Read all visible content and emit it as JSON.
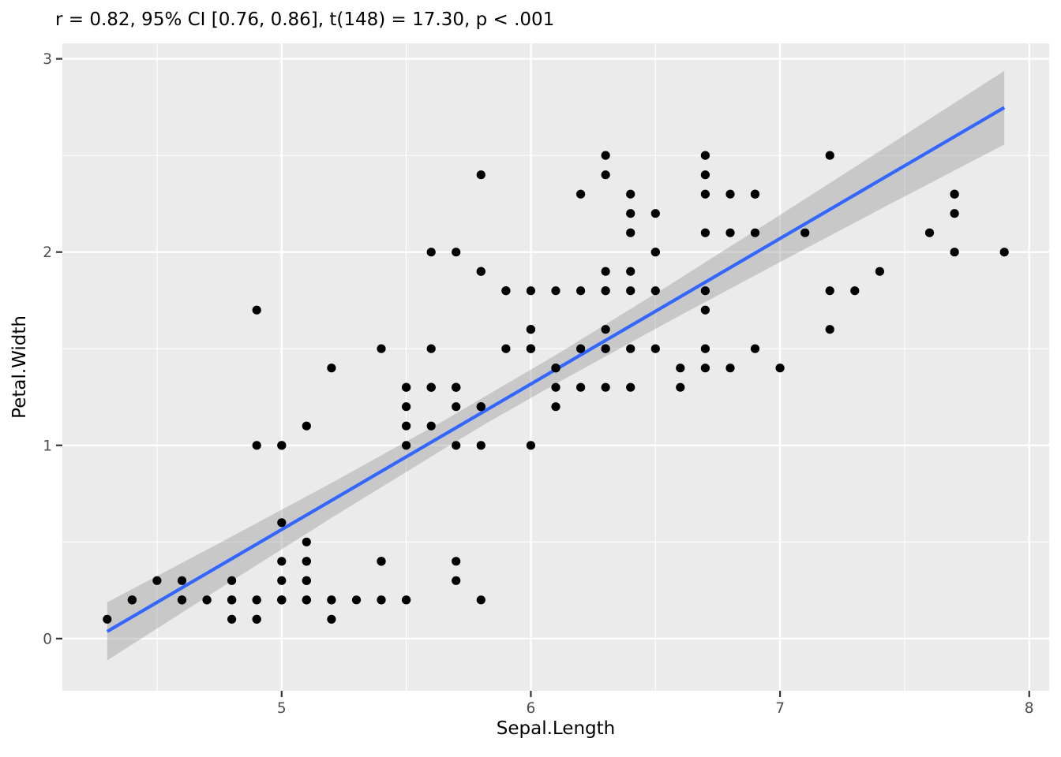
{
  "chart_data": {
    "type": "scatter",
    "title": "r = 0.82, 95% CI [0.76, 0.86], t(148) = 17.30, p < .001",
    "xlabel": "Sepal.Length",
    "ylabel": "Petal.Width",
    "stats": {
      "r": 0.82,
      "ci_level": "95%",
      "ci_lower": 0.76,
      "ci_upper": 0.86,
      "df": 148,
      "t": 17.3,
      "p": "< .001"
    },
    "xlim": [
      4.12,
      8.08
    ],
    "ylim": [
      -0.27,
      3.08
    ],
    "x_ticks": [
      5,
      6,
      7,
      8
    ],
    "y_ticks": [
      0,
      1,
      2,
      3
    ],
    "x_minor": [
      4.5,
      5.5,
      6.5,
      7.5
    ],
    "y_minor": [
      0.5,
      1.5,
      2.5
    ],
    "grid": true,
    "legend_position": "none",
    "points": [
      [
        5.1,
        0.2
      ],
      [
        4.9,
        0.2
      ],
      [
        4.7,
        0.2
      ],
      [
        4.6,
        0.2
      ],
      [
        5.0,
        0.2
      ],
      [
        5.4,
        0.4
      ],
      [
        4.6,
        0.3
      ],
      [
        5.0,
        0.2
      ],
      [
        4.4,
        0.2
      ],
      [
        4.9,
        0.1
      ],
      [
        5.4,
        0.2
      ],
      [
        4.8,
        0.2
      ],
      [
        4.8,
        0.1
      ],
      [
        4.3,
        0.1
      ],
      [
        5.8,
        0.2
      ],
      [
        5.7,
        0.4
      ],
      [
        5.4,
        0.4
      ],
      [
        5.1,
        0.3
      ],
      [
        5.7,
        0.3
      ],
      [
        5.1,
        0.3
      ],
      [
        5.4,
        0.2
      ],
      [
        5.1,
        0.4
      ],
      [
        4.6,
        0.2
      ],
      [
        5.1,
        0.5
      ],
      [
        4.8,
        0.2
      ],
      [
        5.0,
        0.2
      ],
      [
        5.0,
        0.4
      ],
      [
        5.2,
        0.2
      ],
      [
        5.2,
        0.2
      ],
      [
        4.7,
        0.2
      ],
      [
        4.8,
        0.2
      ],
      [
        5.4,
        0.4
      ],
      [
        5.2,
        0.1
      ],
      [
        5.5,
        0.2
      ],
      [
        4.9,
        0.2
      ],
      [
        5.0,
        0.2
      ],
      [
        5.5,
        0.2
      ],
      [
        4.9,
        0.1
      ],
      [
        4.4,
        0.2
      ],
      [
        5.1,
        0.2
      ],
      [
        5.0,
        0.3
      ],
      [
        4.5,
        0.3
      ],
      [
        4.4,
        0.2
      ],
      [
        5.0,
        0.6
      ],
      [
        5.1,
        0.4
      ],
      [
        4.8,
        0.3
      ],
      [
        5.1,
        0.2
      ],
      [
        4.6,
        0.2
      ],
      [
        5.3,
        0.2
      ],
      [
        5.0,
        0.2
      ],
      [
        7.0,
        1.4
      ],
      [
        6.4,
        1.5
      ],
      [
        6.9,
        1.5
      ],
      [
        5.5,
        1.3
      ],
      [
        6.5,
        1.5
      ],
      [
        5.7,
        1.3
      ],
      [
        6.3,
        1.6
      ],
      [
        4.9,
        1.0
      ],
      [
        6.6,
        1.3
      ],
      [
        5.2,
        1.4
      ],
      [
        5.0,
        1.0
      ],
      [
        5.9,
        1.5
      ],
      [
        6.0,
        1.0
      ],
      [
        6.1,
        1.4
      ],
      [
        5.6,
        1.3
      ],
      [
        6.7,
        1.4
      ],
      [
        5.6,
        1.5
      ],
      [
        5.8,
        1.0
      ],
      [
        6.2,
        1.5
      ],
      [
        5.6,
        1.1
      ],
      [
        5.9,
        1.8
      ],
      [
        6.1,
        1.3
      ],
      [
        6.3,
        1.5
      ],
      [
        6.1,
        1.2
      ],
      [
        6.4,
        1.3
      ],
      [
        6.6,
        1.4
      ],
      [
        6.8,
        1.4
      ],
      [
        6.7,
        1.7
      ],
      [
        6.0,
        1.5
      ],
      [
        5.7,
        1.0
      ],
      [
        5.5,
        1.1
      ],
      [
        5.5,
        1.0
      ],
      [
        5.8,
        1.2
      ],
      [
        6.0,
        1.6
      ],
      [
        5.4,
        1.5
      ],
      [
        6.0,
        1.6
      ],
      [
        6.7,
        1.5
      ],
      [
        6.3,
        1.3
      ],
      [
        5.6,
        1.3
      ],
      [
        5.5,
        1.3
      ],
      [
        5.5,
        1.2
      ],
      [
        6.1,
        1.4
      ],
      [
        5.8,
        1.2
      ],
      [
        5.0,
        1.0
      ],
      [
        5.6,
        1.3
      ],
      [
        5.7,
        1.2
      ],
      [
        5.7,
        1.3
      ],
      [
        6.2,
        1.3
      ],
      [
        5.1,
        1.1
      ],
      [
        5.7,
        1.3
      ],
      [
        6.3,
        2.5
      ],
      [
        5.8,
        1.9
      ],
      [
        7.1,
        2.1
      ],
      [
        6.3,
        1.8
      ],
      [
        6.5,
        2.2
      ],
      [
        7.6,
        2.1
      ],
      [
        4.9,
        1.7
      ],
      [
        7.3,
        1.8
      ],
      [
        6.7,
        1.8
      ],
      [
        7.2,
        2.5
      ],
      [
        6.5,
        2.0
      ],
      [
        6.4,
        1.9
      ],
      [
        6.8,
        2.1
      ],
      [
        5.7,
        2.0
      ],
      [
        5.8,
        2.4
      ],
      [
        6.4,
        2.3
      ],
      [
        6.5,
        1.8
      ],
      [
        7.7,
        2.2
      ],
      [
        7.7,
        2.3
      ],
      [
        6.0,
        1.5
      ],
      [
        6.9,
        2.3
      ],
      [
        5.6,
        2.0
      ],
      [
        7.7,
        2.0
      ],
      [
        6.3,
        1.8
      ],
      [
        6.7,
        2.1
      ],
      [
        7.2,
        1.8
      ],
      [
        6.2,
        1.8
      ],
      [
        6.1,
        1.8
      ],
      [
        6.4,
        2.1
      ],
      [
        7.2,
        1.6
      ],
      [
        7.4,
        1.9
      ],
      [
        7.9,
        2.0
      ],
      [
        6.4,
        2.2
      ],
      [
        6.3,
        1.5
      ],
      [
        6.1,
        1.4
      ],
      [
        7.7,
        2.3
      ],
      [
        6.3,
        2.4
      ],
      [
        6.4,
        1.8
      ],
      [
        6.0,
        1.8
      ],
      [
        6.9,
        2.1
      ],
      [
        6.7,
        2.4
      ],
      [
        6.9,
        2.3
      ],
      [
        5.8,
        1.9
      ],
      [
        6.8,
        2.3
      ],
      [
        6.7,
        2.5
      ],
      [
        6.7,
        2.3
      ],
      [
        6.3,
        1.9
      ],
      [
        6.5,
        2.0
      ],
      [
        6.2,
        2.3
      ],
      [
        5.9,
        1.8
      ]
    ],
    "regression": {
      "x1": 4.3,
      "y1": 0.037,
      "x2": 7.9,
      "y2": 2.748
    },
    "ci_band": [
      {
        "x": 4.3,
        "lower": -0.113,
        "upper": 0.188
      },
      {
        "x": 4.75,
        "lower": 0.258,
        "upper": 0.494
      },
      {
        "x": 5.2,
        "lower": 0.625,
        "upper": 0.805
      },
      {
        "x": 5.65,
        "lower": 0.981,
        "upper": 1.127
      },
      {
        "x": 5.84,
        "lower": 1.128,
        "upper": 1.271
      },
      {
        "x": 6.1,
        "lower": 1.318,
        "upper": 1.467
      },
      {
        "x": 6.55,
        "lower": 1.638,
        "upper": 1.825
      },
      {
        "x": 7.0,
        "lower": 1.948,
        "upper": 2.192
      },
      {
        "x": 7.45,
        "lower": 2.254,
        "upper": 2.564
      },
      {
        "x": 7.9,
        "lower": 2.557,
        "upper": 2.938
      }
    ],
    "style": {
      "background": "#FFFFFF",
      "panel_bg": "#EBEBEB",
      "grid": "#FFFFFF",
      "point": "#000000",
      "line": "#3366FF",
      "band": "#999999",
      "band_opacity": 0.42,
      "tick": "#333333",
      "tick_label": "#4D4D4D",
      "text": "#000000"
    }
  }
}
